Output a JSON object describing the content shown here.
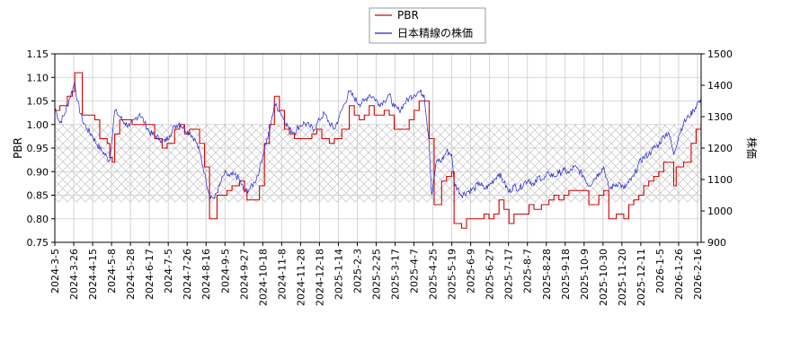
{
  "chart_data": {
    "type": "line",
    "title": "",
    "xlabel": "",
    "ylabel_left": "PBR",
    "ylabel_right": "株価",
    "ylim_left": [
      0.75,
      1.15
    ],
    "ylim_right": [
      900,
      1500
    ],
    "yticks_left": [
      "0.75",
      "0.80",
      "0.85",
      "0.90",
      "0.95",
      "1.00",
      "1.05",
      "1.10",
      "1.15"
    ],
    "yticks_right": [
      "900",
      "1000",
      "1100",
      "1200",
      "1300",
      "1400",
      "1500"
    ],
    "xticks": [
      "2024-3-5",
      "2024-3-26",
      "2024-4-15",
      "2024-5-8",
      "2024-5-28",
      "2024-6-17",
      "2024-7-5",
      "2024-7-26",
      "2024-8-16",
      "2024-9-5",
      "2024-9-27",
      "2024-10-18",
      "2024-11-8",
      "2024-11-28",
      "2024-12-18",
      "2025-1-14",
      "2025-2-3",
      "2025-2-25",
      "2025-3-17",
      "2025-4-7",
      "2025-4-25",
      "2025-5-19",
      "2025-6-9",
      "2025-6-27",
      "2025-7-17",
      "2025-8-7",
      "2025-8-28",
      "2025-9-18",
      "2025-10-9",
      "2025-10-30",
      "2025-11-20",
      "2025-12-11",
      "2026-1-5",
      "2026-1-26",
      "2026-2-16"
    ],
    "band": {
      "left_range": [
        0.835,
        1.0
      ]
    },
    "grid": true,
    "legend_placement": "top-center",
    "colors": {
      "pbr": "#d40000",
      "price": "#2020d0",
      "band_hatch": "#b0b0b0",
      "grid": "#cccccc"
    },
    "series": [
      {
        "name": "PBR",
        "axis": "left",
        "values": [
          [
            0,
            1.03
          ],
          [
            2,
            1.04
          ],
          [
            5,
            1.06
          ],
          [
            7,
            1.07
          ],
          [
            8,
            1.11
          ],
          [
            10,
            1.11
          ],
          [
            11,
            1.02
          ],
          [
            14,
            1.02
          ],
          [
            16,
            1.01
          ],
          [
            18,
            0.97
          ],
          [
            21,
            0.96
          ],
          [
            22,
            0.93
          ],
          [
            23,
            0.92
          ],
          [
            24,
            0.98
          ],
          [
            26,
            1.01
          ],
          [
            28,
            1.01
          ],
          [
            31,
            1.0
          ],
          [
            34,
            1.0
          ],
          [
            38,
            1.0
          ],
          [
            40,
            0.97
          ],
          [
            43,
            0.95
          ],
          [
            45,
            0.96
          ],
          [
            48,
            0.99
          ],
          [
            50,
            1.0
          ],
          [
            52,
            0.98
          ],
          [
            54,
            0.99
          ],
          [
            56,
            0.99
          ],
          [
            58,
            0.96
          ],
          [
            60,
            0.91
          ],
          [
            62,
            0.8
          ],
          [
            64,
            0.8
          ],
          [
            65,
            0.85
          ],
          [
            69,
            0.86
          ],
          [
            71,
            0.87
          ],
          [
            74,
            0.88
          ],
          [
            76,
            0.86
          ],
          [
            77,
            0.84
          ],
          [
            80,
            0.84
          ],
          [
            82,
            0.87
          ],
          [
            84,
            0.96
          ],
          [
            86,
            1.0
          ],
          [
            88,
            1.06
          ],
          [
            90,
            1.03
          ],
          [
            92,
            0.99
          ],
          [
            94,
            0.98
          ],
          [
            96,
            0.97
          ],
          [
            100,
            0.97
          ],
          [
            103,
            0.98
          ],
          [
            105,
            0.99
          ],
          [
            107,
            0.97
          ],
          [
            110,
            0.96
          ],
          [
            112,
            0.97
          ],
          [
            115,
            0.99
          ],
          [
            118,
            1.04
          ],
          [
            120,
            1.02
          ],
          [
            122,
            1.01
          ],
          [
            124,
            1.02
          ],
          [
            126,
            1.04
          ],
          [
            128,
            1.02
          ],
          [
            130,
            1.02
          ],
          [
            132,
            1.03
          ],
          [
            134,
            1.02
          ],
          [
            136,
            0.99
          ],
          [
            140,
            0.99
          ],
          [
            142,
            1.01
          ],
          [
            144,
            1.03
          ],
          [
            146,
            1.05
          ],
          [
            148,
            1.05
          ],
          [
            150,
            0.97
          ],
          [
            152,
            0.83
          ],
          [
            154,
            0.83
          ],
          [
            155,
            0.88
          ],
          [
            157,
            0.89
          ],
          [
            159,
            0.9
          ],
          [
            160,
            0.79
          ],
          [
            163,
            0.78
          ],
          [
            165,
            0.8
          ],
          [
            170,
            0.8
          ],
          [
            172,
            0.81
          ],
          [
            174,
            0.8
          ],
          [
            176,
            0.81
          ],
          [
            178,
            0.84
          ],
          [
            180,
            0.82
          ],
          [
            182,
            0.79
          ],
          [
            184,
            0.81
          ],
          [
            190,
            0.83
          ],
          [
            192,
            0.82
          ],
          [
            195,
            0.83
          ],
          [
            198,
            0.84
          ],
          [
            200,
            0.85
          ],
          [
            202,
            0.84
          ],
          [
            204,
            0.85
          ],
          [
            206,
            0.86
          ],
          [
            214,
            0.83
          ],
          [
            218,
            0.85
          ],
          [
            220,
            0.86
          ],
          [
            222,
            0.8
          ],
          [
            225,
            0.81
          ],
          [
            228,
            0.8
          ],
          [
            230,
            0.83
          ],
          [
            232,
            0.84
          ],
          [
            234,
            0.85
          ],
          [
            236,
            0.87
          ],
          [
            238,
            0.88
          ],
          [
            240,
            0.89
          ],
          [
            242,
            0.9
          ],
          [
            244,
            0.92
          ],
          [
            248,
            0.87
          ],
          [
            249,
            0.91
          ],
          [
            252,
            0.92
          ],
          [
            255,
            0.96
          ],
          [
            257,
            0.99
          ],
          [
            259,
            1.0
          ]
        ]
      },
      {
        "name": "日本精線の株価",
        "axis": "right",
        "values": [
          [
            0,
            1330
          ],
          [
            2,
            1280
          ],
          [
            4,
            1310
          ],
          [
            6,
            1360
          ],
          [
            8,
            1410
          ],
          [
            9,
            1350
          ],
          [
            11,
            1290
          ],
          [
            13,
            1260
          ],
          [
            15,
            1240
          ],
          [
            17,
            1210
          ],
          [
            19,
            1190
          ],
          [
            21,
            1170
          ],
          [
            22,
            1160
          ],
          [
            24,
            1320
          ],
          [
            26,
            1300
          ],
          [
            28,
            1280
          ],
          [
            30,
            1270
          ],
          [
            32,
            1290
          ],
          [
            34,
            1310
          ],
          [
            36,
            1280
          ],
          [
            38,
            1250
          ],
          [
            40,
            1240
          ],
          [
            42,
            1230
          ],
          [
            44,
            1220
          ],
          [
            46,
            1240
          ],
          [
            48,
            1270
          ],
          [
            50,
            1280
          ],
          [
            52,
            1260
          ],
          [
            54,
            1250
          ],
          [
            56,
            1230
          ],
          [
            58,
            1190
          ],
          [
            60,
            1120
          ],
          [
            62,
            1050
          ],
          [
            64,
            1040
          ],
          [
            66,
            1080
          ],
          [
            68,
            1120
          ],
          [
            70,
            1110
          ],
          [
            72,
            1115
          ],
          [
            74,
            1100
          ],
          [
            76,
            1060
          ],
          [
            78,
            1070
          ],
          [
            80,
            1090
          ],
          [
            82,
            1130
          ],
          [
            84,
            1200
          ],
          [
            86,
            1250
          ],
          [
            88,
            1340
          ],
          [
            90,
            1320
          ],
          [
            92,
            1290
          ],
          [
            94,
            1260
          ],
          [
            96,
            1250
          ],
          [
            98,
            1270
          ],
          [
            100,
            1280
          ],
          [
            102,
            1270
          ],
          [
            104,
            1260
          ],
          [
            106,
            1290
          ],
          [
            108,
            1310
          ],
          [
            110,
            1280
          ],
          [
            112,
            1260
          ],
          [
            114,
            1300
          ],
          [
            116,
            1340
          ],
          [
            118,
            1380
          ],
          [
            120,
            1360
          ],
          [
            122,
            1340
          ],
          [
            124,
            1350
          ],
          [
            126,
            1370
          ],
          [
            128,
            1360
          ],
          [
            130,
            1340
          ],
          [
            132,
            1350
          ],
          [
            134,
            1370
          ],
          [
            136,
            1330
          ],
          [
            138,
            1320
          ],
          [
            140,
            1340
          ],
          [
            142,
            1360
          ],
          [
            144,
            1370
          ],
          [
            146,
            1380
          ],
          [
            148,
            1370
          ],
          [
            150,
            1220
          ],
          [
            151,
            1050
          ],
          [
            153,
            1160
          ],
          [
            155,
            1160
          ],
          [
            157,
            1190
          ],
          [
            159,
            1180
          ],
          [
            160,
            1090
          ],
          [
            163,
            1050
          ],
          [
            165,
            1060
          ],
          [
            168,
            1070
          ],
          [
            170,
            1090
          ],
          [
            172,
            1070
          ],
          [
            174,
            1080
          ],
          [
            176,
            1100
          ],
          [
            178,
            1120
          ],
          [
            180,
            1090
          ],
          [
            182,
            1060
          ],
          [
            184,
            1080
          ],
          [
            186,
            1070
          ],
          [
            188,
            1090
          ],
          [
            190,
            1100
          ],
          [
            192,
            1080
          ],
          [
            194,
            1110
          ],
          [
            196,
            1100
          ],
          [
            198,
            1120
          ],
          [
            200,
            1110
          ],
          [
            202,
            1120
          ],
          [
            204,
            1130
          ],
          [
            206,
            1120
          ],
          [
            208,
            1140
          ],
          [
            210,
            1130
          ],
          [
            212,
            1110
          ],
          [
            214,
            1080
          ],
          [
            216,
            1100
          ],
          [
            218,
            1120
          ],
          [
            220,
            1140
          ],
          [
            222,
            1070
          ],
          [
            224,
            1080
          ],
          [
            226,
            1090
          ],
          [
            228,
            1070
          ],
          [
            230,
            1090
          ],
          [
            232,
            1110
          ],
          [
            234,
            1150
          ],
          [
            236,
            1170
          ],
          [
            238,
            1180
          ],
          [
            240,
            1200
          ],
          [
            242,
            1210
          ],
          [
            244,
            1240
          ],
          [
            246,
            1250
          ],
          [
            248,
            1180
          ],
          [
            250,
            1240
          ],
          [
            252,
            1280
          ],
          [
            254,
            1300
          ],
          [
            256,
            1320
          ],
          [
            258,
            1350
          ],
          [
            259,
            1340
          ]
        ]
      }
    ]
  }
}
